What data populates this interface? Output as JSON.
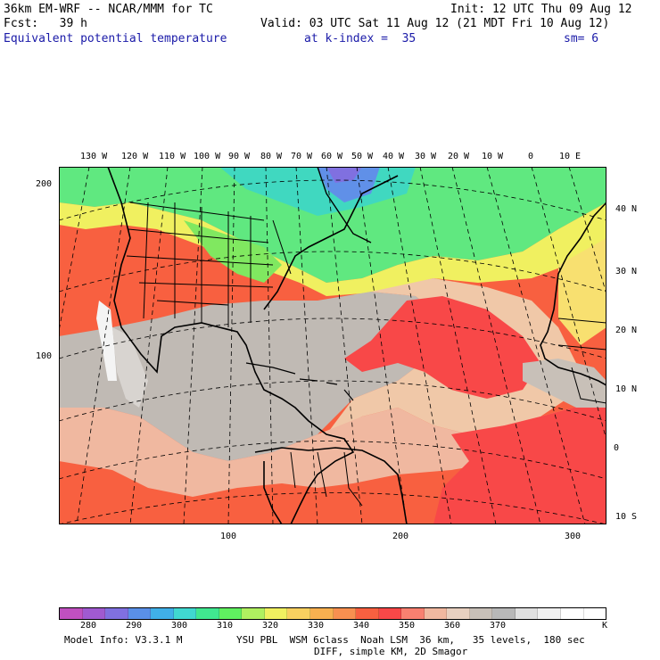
{
  "header": {
    "model": "36km EM-WRF -- NCAR/MMM for TC",
    "init": "Init: 12 UTC Thu 09 Aug 12",
    "fcst": "Fcst:   39 h",
    "valid": "Valid: 03 UTC Sat 11 Aug 12 (21 MDT Fri 10 Aug 12)",
    "field": "Equivalent potential temperature",
    "level": "at k-index =  35",
    "smooth": "sm= 6"
  },
  "map": {
    "longitude_labels": [
      "130 W",
      "120 W",
      "110 W",
      "100 W",
      "90 W",
      "80 W",
      "70 W",
      "60 W",
      "50 W",
      "40 W",
      "30 W",
      "20 W",
      "10 W",
      "0",
      "10 E"
    ],
    "latitude_labels": [
      "40 N",
      "30 N",
      "20 N",
      "10 N",
      "0",
      "10 S"
    ],
    "x_grid_labels": [
      "100",
      "200",
      "300"
    ],
    "y_grid_labels": [
      "200",
      "100"
    ]
  },
  "colorbar": {
    "levels": [
      "280",
      "290",
      "300",
      "310",
      "320",
      "330",
      "340",
      "350",
      "360",
      "370"
    ],
    "unit": "K",
    "colors": [
      "#c050c0",
      "#a05ad0",
      "#8070e0",
      "#5a90e8",
      "#40b0e8",
      "#40d8d0",
      "#40e890",
      "#60f060",
      "#b0f060",
      "#f0f060",
      "#f8d060",
      "#f8b050",
      "#f89050",
      "#f86040",
      "#f84848",
      "#f88070",
      "#f0b8a0",
      "#e8d0c0",
      "#c8c0b8",
      "#b8b8b8",
      "#e0e0e0",
      "#f0f0f0",
      "#ffffff",
      "#ffffff"
    ]
  },
  "footer": {
    "info": "Model Info: V3.3.1 M",
    "physics": "YSU PBL  WSM 6class  Noah LSM  36 km,   35 levels,  180 sec",
    "diff": "DIFF, simple KM, 2D Smagor"
  }
}
